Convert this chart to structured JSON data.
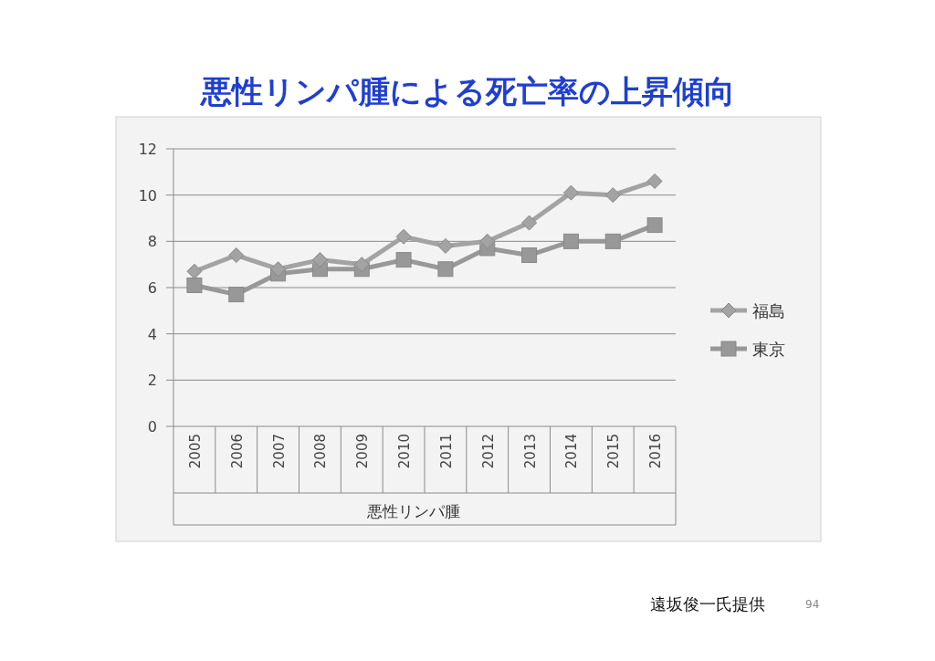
{
  "chart_data": {
    "type": "line",
    "title": "悪性リンパ腫による死亡率の上昇傾向",
    "xlabel": "悪性リンパ腫",
    "categories": [
      "2005",
      "2006",
      "2007",
      "2008",
      "2009",
      "2010",
      "2011",
      "2012",
      "2013",
      "2014",
      "2015",
      "2016"
    ],
    "series": [
      {
        "name": "福島",
        "color": "#a3a3a3",
        "marker": "diamond",
        "values": [
          6.7,
          7.4,
          6.8,
          7.2,
          7.0,
          8.2,
          7.8,
          8.0,
          8.8,
          10.1,
          10.0,
          10.6
        ]
      },
      {
        "name": "東京",
        "color": "#989898",
        "marker": "square",
        "values": [
          6.1,
          5.7,
          6.6,
          6.8,
          6.8,
          7.2,
          6.8,
          7.7,
          7.4,
          8.0,
          8.0,
          8.7
        ]
      }
    ],
    "ylim": [
      0,
      12
    ],
    "yticks": [
      0,
      2,
      4,
      6,
      8,
      10,
      12
    ],
    "grid": "y",
    "legend": "right",
    "annotations": [
      "遠坂俊一氏提供",
      "94"
    ]
  }
}
